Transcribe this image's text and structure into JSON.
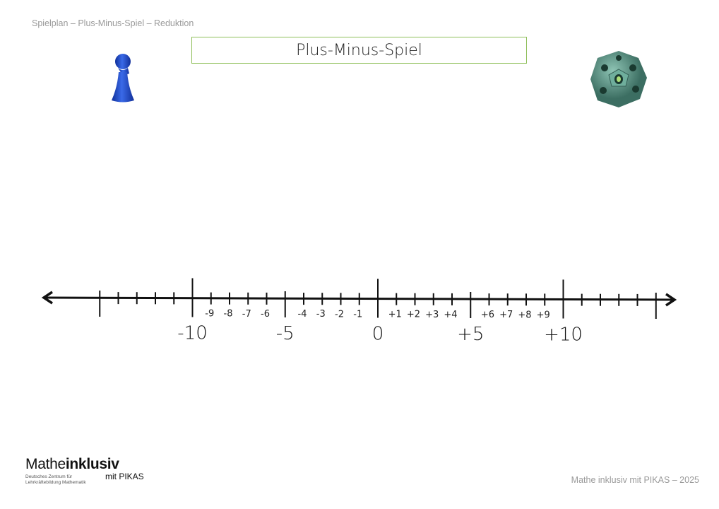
{
  "header": {
    "subtitle": "Spielplan – Plus-Minus-Spiel – Reduktion",
    "title": "Plus-Minus-Spiel"
  },
  "images": {
    "pawn": "blue-game-pawn",
    "die": "twelve-sided-die"
  },
  "number_line": {
    "min": -15,
    "max": 15,
    "small_labels": {
      "-9": "-9",
      "-8": "-8",
      "-7": "-7",
      "-6": "-6",
      "-4": "-4",
      "-3": "-3",
      "-2": "-2",
      "-1": "-1",
      "1": "+1",
      "2": "+2",
      "3": "+3",
      "4": "+4",
      "6": "+6",
      "7": "+7",
      "8": "+8",
      "9": "+9"
    },
    "big_labels": {
      "-10": "-10",
      "-5": "-5",
      "0": "0",
      "5": "+5",
      "10": "+10"
    }
  },
  "logo": {
    "brand_regular": "Mathe",
    "brand_bold": "inklusiv",
    "line1": "Deutsches Zentrum für",
    "line2": "Lehrkräftebildung Mathematik",
    "pikas": "mit PIKAS"
  },
  "footer": {
    "text": "Mathe inklusiv mit PIKAS – 2025"
  },
  "colors": {
    "title_border": "#8fbf5a",
    "pawn": "#1f4fc8",
    "die": "#5e9a8a"
  }
}
